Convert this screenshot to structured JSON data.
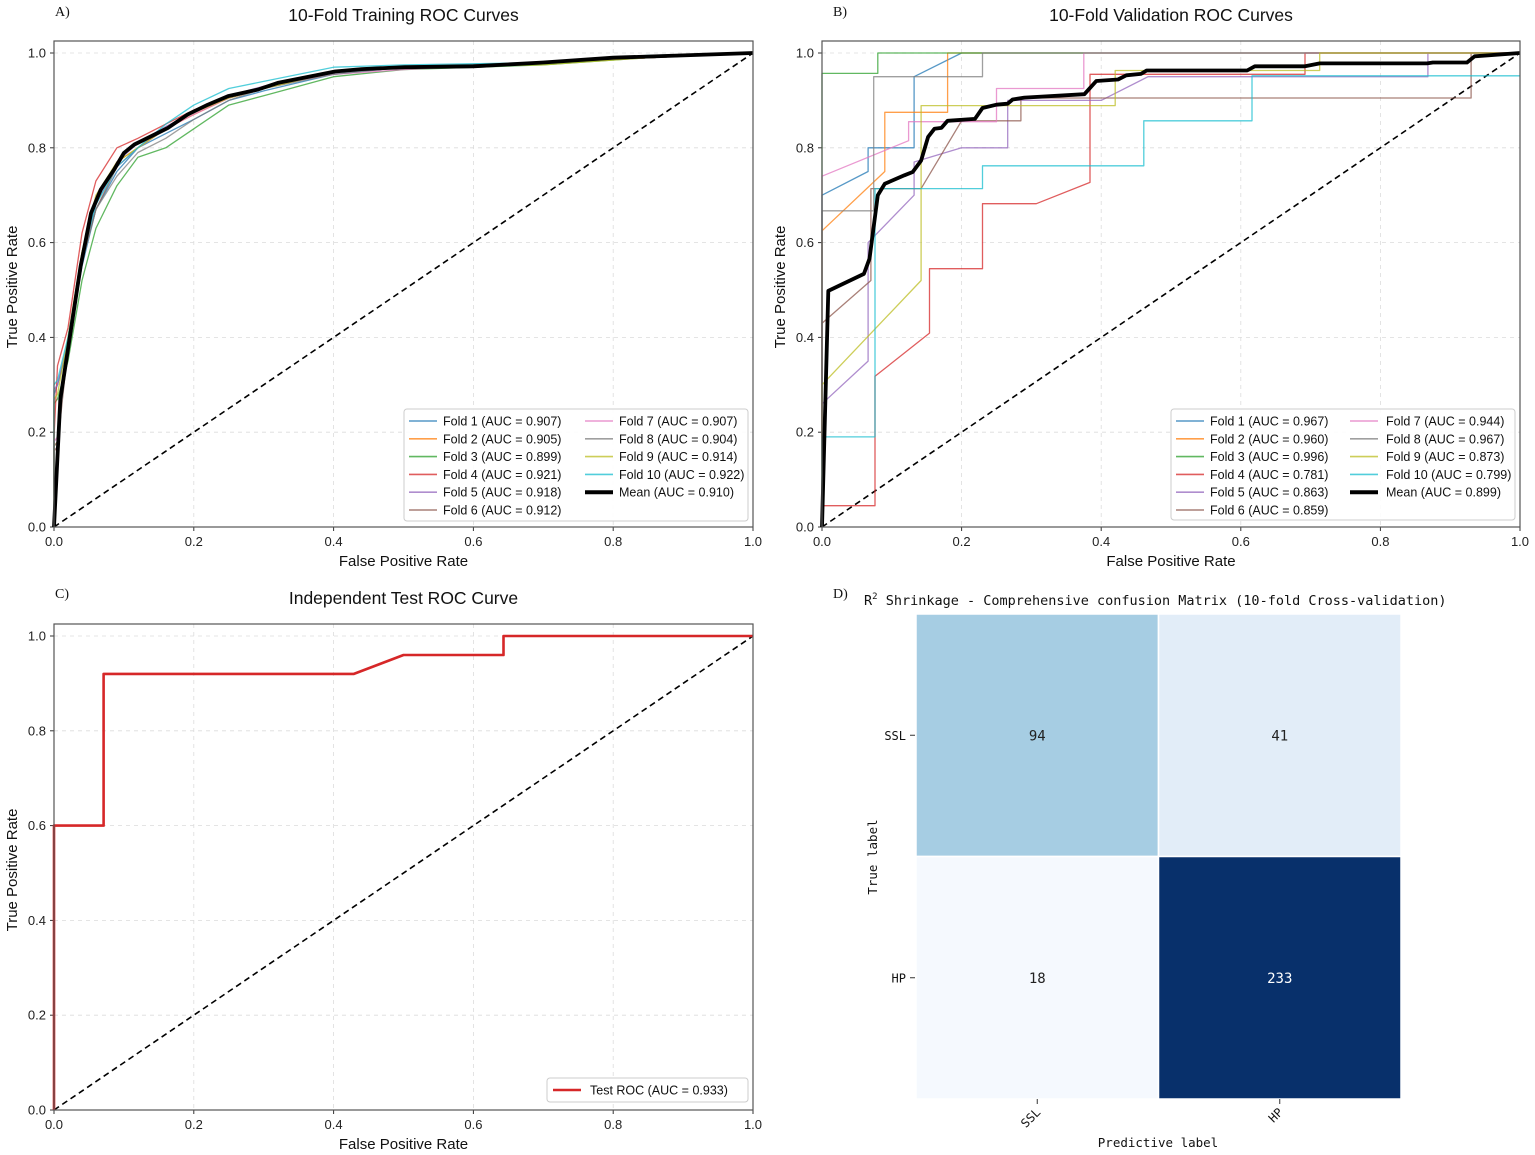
{
  "chart_data": [
    {
      "panel_label": "A)",
      "type": "line",
      "title": "10-Fold Training ROC Curves",
      "xlabel": "False Positive Rate",
      "ylabel": "True Positive Rate",
      "xlim": [
        0,
        1
      ],
      "ylim": [
        0,
        1.03
      ],
      "xticks": [
        "0.0",
        "0.2",
        "0.4",
        "0.6",
        "0.8",
        "1.0"
      ],
      "yticks": [
        "0.0",
        "0.2",
        "0.4",
        "0.6",
        "0.8",
        "1.0"
      ],
      "grid": true,
      "reference_line": "diagonal-dashed",
      "legend_position": "lower-right",
      "series": [
        {
          "name": "Fold 1 (AUC = 0.907)",
          "color": "#1f77b4",
          "x": [
            0,
            0,
            0.005,
            0.02,
            0.04,
            0.06,
            0.09,
            0.12,
            0.16,
            0.2,
            0.25,
            0.3,
            0.4,
            0.5,
            0.7,
            0.85,
            1
          ],
          "y": [
            0,
            0.28,
            0.3,
            0.38,
            0.55,
            0.67,
            0.75,
            0.8,
            0.83,
            0.86,
            0.9,
            0.92,
            0.955,
            0.97,
            0.98,
            0.99,
            1
          ]
        },
        {
          "name": "Fold 2 (AUC = 0.905)",
          "color": "#ff7f0e",
          "x": [
            0,
            0,
            0.005,
            0.02,
            0.04,
            0.06,
            0.09,
            0.12,
            0.16,
            0.2,
            0.25,
            0.3,
            0.4,
            0.5,
            0.7,
            0.85,
            1
          ],
          "y": [
            0,
            0.17,
            0.18,
            0.4,
            0.58,
            0.69,
            0.77,
            0.8,
            0.84,
            0.87,
            0.905,
            0.925,
            0.96,
            0.97,
            0.98,
            0.99,
            1
          ]
        },
        {
          "name": "Fold 3 (AUC = 0.899)",
          "color": "#2ca02c",
          "x": [
            0,
            0,
            0.005,
            0.02,
            0.04,
            0.06,
            0.09,
            0.12,
            0.16,
            0.2,
            0.25,
            0.3,
            0.4,
            0.5,
            0.7,
            0.85,
            1
          ],
          "y": [
            0,
            0.26,
            0.27,
            0.35,
            0.52,
            0.63,
            0.72,
            0.78,
            0.8,
            0.84,
            0.89,
            0.91,
            0.95,
            0.965,
            0.975,
            0.99,
            1
          ]
        },
        {
          "name": "Fold 4 (AUC = 0.921)",
          "color": "#d62728",
          "x": [
            0,
            0,
            0.005,
            0.02,
            0.04,
            0.06,
            0.09,
            0.12,
            0.16,
            0.2,
            0.25,
            0.3,
            0.4,
            0.5,
            0.7,
            0.85,
            1
          ],
          "y": [
            0,
            0.19,
            0.34,
            0.42,
            0.62,
            0.73,
            0.8,
            0.82,
            0.85,
            0.88,
            0.905,
            0.925,
            0.96,
            0.97,
            0.98,
            0.99,
            1
          ]
        },
        {
          "name": "Fold 5 (AUC = 0.918)",
          "color": "#9467bd",
          "x": [
            0,
            0,
            0.005,
            0.02,
            0.04,
            0.06,
            0.09,
            0.12,
            0.16,
            0.2,
            0.25,
            0.3,
            0.4,
            0.5,
            0.7,
            0.85,
            1
          ],
          "y": [
            0,
            0.29,
            0.3,
            0.39,
            0.57,
            0.68,
            0.77,
            0.81,
            0.845,
            0.875,
            0.91,
            0.93,
            0.96,
            0.97,
            0.98,
            0.99,
            1
          ]
        },
        {
          "name": "Fold 6 (AUC = 0.912)",
          "color": "#8c564b",
          "x": [
            0,
            0,
            0.005,
            0.02,
            0.04,
            0.06,
            0.09,
            0.12,
            0.16,
            0.2,
            0.25,
            0.3,
            0.4,
            0.5,
            0.7,
            0.85,
            1
          ],
          "y": [
            0,
            0.16,
            0.17,
            0.38,
            0.56,
            0.67,
            0.76,
            0.8,
            0.84,
            0.875,
            0.905,
            0.925,
            0.96,
            0.972,
            0.98,
            0.99,
            1
          ]
        },
        {
          "name": "Fold 7 (AUC = 0.907)",
          "color": "#e377c2",
          "x": [
            0,
            0,
            0.005,
            0.02,
            0.04,
            0.06,
            0.09,
            0.12,
            0.16,
            0.2,
            0.25,
            0.3,
            0.4,
            0.5,
            0.7,
            0.85,
            1
          ],
          "y": [
            0,
            0.18,
            0.19,
            0.39,
            0.57,
            0.69,
            0.76,
            0.8,
            0.84,
            0.87,
            0.905,
            0.93,
            0.955,
            0.965,
            0.98,
            0.99,
            1
          ]
        },
        {
          "name": "Fold 8 (AUC = 0.904)",
          "color": "#7f7f7f",
          "x": [
            0,
            0,
            0.005,
            0.02,
            0.04,
            0.06,
            0.09,
            0.12,
            0.16,
            0.2,
            0.25,
            0.3,
            0.4,
            0.5,
            0.7,
            0.85,
            1
          ],
          "y": [
            0,
            0.17,
            0.18,
            0.38,
            0.56,
            0.67,
            0.74,
            0.79,
            0.82,
            0.86,
            0.9,
            0.925,
            0.955,
            0.97,
            0.98,
            0.99,
            1
          ]
        },
        {
          "name": "Fold 9 (AUC = 0.914)",
          "color": "#bcbd22",
          "x": [
            0,
            0,
            0.005,
            0.02,
            0.04,
            0.06,
            0.09,
            0.12,
            0.16,
            0.2,
            0.25,
            0.3,
            0.4,
            0.5,
            0.7,
            0.85,
            1
          ],
          "y": [
            0,
            0.27,
            0.28,
            0.4,
            0.58,
            0.7,
            0.77,
            0.8,
            0.84,
            0.875,
            0.905,
            0.925,
            0.96,
            0.97,
            0.975,
            0.99,
            1
          ]
        },
        {
          "name": "Fold 10 (AUC = 0.922)",
          "color": "#17becf",
          "x": [
            0,
            0,
            0.005,
            0.02,
            0.04,
            0.06,
            0.09,
            0.12,
            0.16,
            0.2,
            0.25,
            0.3,
            0.4,
            0.5,
            0.7,
            0.85,
            1
          ],
          "y": [
            0,
            0.3,
            0.31,
            0.4,
            0.57,
            0.68,
            0.76,
            0.8,
            0.85,
            0.89,
            0.925,
            0.94,
            0.97,
            0.975,
            0.98,
            0.995,
            1
          ]
        },
        {
          "name": "Mean (AUC = 0.910)",
          "color": "#000000",
          "mean": true,
          "x": [
            0,
            0.009,
            0.022,
            0.038,
            0.053,
            0.067,
            0.086,
            0.1,
            0.115,
            0.144,
            0.163,
            0.191,
            0.22,
            0.249,
            0.292,
            0.32,
            0.368,
            0.402,
            0.44,
            0.502,
            0.6,
            0.7,
            0.8,
            0.9,
            1
          ],
          "y": [
            0,
            0.269,
            0.395,
            0.55,
            0.662,
            0.712,
            0.754,
            0.789,
            0.807,
            0.828,
            0.842,
            0.87,
            0.891,
            0.909,
            0.923,
            0.937,
            0.951,
            0.961,
            0.966,
            0.97,
            0.972,
            0.98,
            0.99,
            0.995,
            1
          ]
        }
      ]
    },
    {
      "panel_label": "B)",
      "type": "line",
      "title": "10-Fold Validation ROC Curves",
      "xlabel": "False Positive Rate",
      "ylabel": "True Positive Rate",
      "xlim": [
        0,
        1
      ],
      "ylim": [
        0,
        1.03
      ],
      "xticks": [
        "0.0",
        "0.2",
        "0.4",
        "0.6",
        "0.8",
        "1.0"
      ],
      "yticks": [
        "0.0",
        "0.2",
        "0.4",
        "0.6",
        "0.8",
        "1.0"
      ],
      "grid": true,
      "reference_line": "diagonal-dashed",
      "legend_position": "lower-right",
      "series": [
        {
          "name": "Fold 1 (AUC = 0.967)",
          "color": "#1f77b4",
          "x": [
            0,
            0,
            0.066,
            0.066,
            0.132,
            0.132,
            0.2,
            1
          ],
          "y": [
            0,
            0.7,
            0.75,
            0.8,
            0.8,
            0.95,
            1,
            1
          ]
        },
        {
          "name": "Fold 2 (AUC = 0.960)",
          "color": "#ff7f0e",
          "x": [
            0,
            0,
            0.09,
            0.09,
            0.18,
            0.18,
            1
          ],
          "y": [
            0,
            0.625,
            0.75,
            0.875,
            0.875,
            1,
            1
          ]
        },
        {
          "name": "Fold 3 (AUC = 0.996)",
          "color": "#2ca02c",
          "x": [
            0,
            0,
            0.08,
            0.08,
            1
          ],
          "y": [
            0,
            0.957,
            0.957,
            1,
            1
          ]
        },
        {
          "name": "Fold 4 (AUC = 0.781)",
          "color": "#d62728",
          "x": [
            0,
            0,
            0.076,
            0.076,
            0.154,
            0.154,
            0.23,
            0.23,
            0.307,
            0.384,
            0.384,
            0.692,
            0.692,
            1
          ],
          "y": [
            0,
            0.045,
            0.045,
            0.318,
            0.409,
            0.545,
            0.545,
            0.682,
            0.682,
            0.727,
            0.955,
            0.955,
            1,
            1
          ]
        },
        {
          "name": "Fold 5 (AUC = 0.863)",
          "color": "#9467bd",
          "x": [
            0,
            0,
            0.066,
            0.066,
            0.132,
            0.132,
            0.2,
            0.266,
            0.266,
            0.4,
            0.467,
            0.868,
            0.868,
            1
          ],
          "y": [
            0,
            0.26,
            0.35,
            0.6,
            0.7,
            0.77,
            0.8,
            0.8,
            0.9,
            0.9,
            0.95,
            0.95,
            1,
            1
          ]
        },
        {
          "name": "Fold 6 (AUC = 0.859)",
          "color": "#8c564b",
          "x": [
            0,
            0,
            0.07,
            0.07,
            0.142,
            0.2,
            0.285,
            0.285,
            0.93,
            0.93,
            1
          ],
          "y": [
            0,
            0.43,
            0.52,
            0.714,
            0.714,
            0.857,
            0.857,
            0.905,
            0.905,
            1,
            1
          ]
        },
        {
          "name": "Fold 7 (AUC = 0.944)",
          "color": "#e377c2",
          "x": [
            0,
            0,
            0.124,
            0.124,
            0.25,
            0.25,
            0.375,
            0.375,
            1
          ],
          "y": [
            0,
            0.74,
            0.815,
            0.855,
            0.855,
            0.925,
            0.925,
            1,
            1
          ]
        },
        {
          "name": "Fold 8 (AUC = 0.967)",
          "color": "#7f7f7f",
          "x": [
            0,
            0,
            0.074,
            0.074,
            0.23,
            0.23,
            1
          ],
          "y": [
            0,
            0.667,
            0.667,
            0.95,
            0.95,
            1,
            1
          ]
        },
        {
          "name": "Fold 9 (AUC = 0.873)",
          "color": "#bcbd22",
          "x": [
            0,
            0,
            0.142,
            0.142,
            0.42,
            0.42,
            0.713,
            0.713,
            1
          ],
          "y": [
            0,
            0.3,
            0.52,
            0.889,
            0.889,
            0.963,
            0.963,
            1,
            1
          ]
        },
        {
          "name": "Fold 10 (AUC = 0.799)",
          "color": "#17becf",
          "x": [
            0,
            0,
            0.076,
            0.076,
            0.23,
            0.23,
            0.461,
            0.461,
            0.616,
            0.616,
            1
          ],
          "y": [
            0,
            0.19,
            0.19,
            0.714,
            0.714,
            0.762,
            0.762,
            0.857,
            0.857,
            0.952,
            0.952
          ]
        },
        {
          "name": "Mean (AUC = 0.899)",
          "color": "#000000",
          "mean": true,
          "x": [
            0,
            0.009,
            0.06,
            0.068,
            0.08,
            0.09,
            0.118,
            0.13,
            0.142,
            0.152,
            0.161,
            0.171,
            0.18,
            0.219,
            0.23,
            0.25,
            0.266,
            0.273,
            0.29,
            0.376,
            0.393,
            0.424,
            0.436,
            0.457,
            0.465,
            0.609,
            0.62,
            0.692,
            0.713,
            0.867,
            0.875,
            0.924,
            0.935,
            1
          ],
          "y": [
            0,
            0.498,
            0.534,
            0.566,
            0.7,
            0.724,
            0.742,
            0.749,
            0.773,
            0.823,
            0.84,
            0.842,
            0.857,
            0.861,
            0.884,
            0.891,
            0.893,
            0.902,
            0.906,
            0.913,
            0.941,
            0.944,
            0.953,
            0.956,
            0.963,
            0.963,
            0.972,
            0.972,
            0.978,
            0.978,
            0.98,
            0.98,
            0.993,
            1
          ]
        }
      ]
    },
    {
      "panel_label": "C)",
      "type": "line",
      "title": "Independent Test ROC Curve",
      "xlabel": "False Positive Rate",
      "ylabel": "True Positive Rate",
      "xlim": [
        0,
        1
      ],
      "ylim": [
        0,
        1.05
      ],
      "xticks": [
        "0.0",
        "0.2",
        "0.4",
        "0.6",
        "0.8",
        "1.0"
      ],
      "yticks": [
        "0.0",
        "0.2",
        "0.4",
        "0.6",
        "0.8",
        "1.0"
      ],
      "grid": true,
      "reference_line": "diagonal-dashed",
      "legend_position": "lower-right",
      "series": [
        {
          "name": "Test ROC (AUC = 0.933)",
          "color": "#d62728",
          "x": [
            0,
            0,
            0.071,
            0.071,
            0.429,
            0.5,
            0.643,
            0.643,
            1
          ],
          "y": [
            0,
            0.6,
            0.6,
            0.92,
            0.92,
            0.96,
            0.96,
            1,
            1
          ]
        }
      ]
    },
    {
      "panel_label": "D)",
      "type": "heatmap",
      "title_prefix": "R",
      "title_superscript": "2",
      "title": " Shrinkage - Comprehensive confusion Matrix (10-fold Cross-validation)",
      "xlabel": "Predictive label",
      "ylabel": "True label",
      "row_labels": [
        "SSL",
        "HP"
      ],
      "col_labels": [
        "SSL",
        "HP"
      ],
      "values": [
        [
          94,
          41
        ],
        [
          18,
          233
        ]
      ],
      "colormap": "Blues",
      "cell_colors": [
        [
          "#a6cde3",
          "#e2edf8"
        ],
        [
          "#f5f9fe",
          "#08306b"
        ]
      ]
    }
  ]
}
